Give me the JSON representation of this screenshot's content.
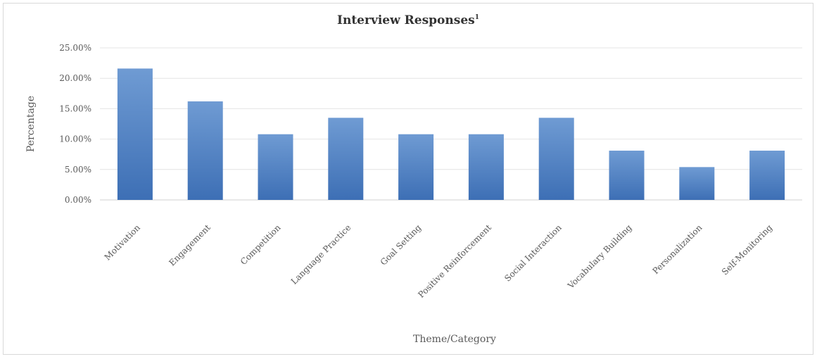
{
  "chart_data": {
    "type": "bar",
    "title": "Interview Responses",
    "title_superscript": "1",
    "xlabel": "Theme/Category",
    "ylabel": "Percentage",
    "categories": [
      "Motivation",
      "Engagement",
      "Competition",
      "Language Practice",
      "Goal Setting",
      "Positive Reinforcement",
      "Social Interaction",
      "Vocabulary Building",
      "Personalization",
      "Self-Monitoring"
    ],
    "values": [
      21.6,
      16.2,
      10.8,
      13.5,
      10.8,
      10.8,
      13.5,
      8.1,
      5.4,
      8.1
    ],
    "ylim": [
      0,
      25
    ],
    "yticks": [
      0,
      5,
      10,
      15,
      20,
      25
    ],
    "ytick_labels": [
      "0.00%",
      "5.00%",
      "10.00%",
      "15.00%",
      "20.00%",
      "25.00%"
    ],
    "grid": true,
    "legend": "none",
    "bar_color": "#4a7dc0"
  }
}
